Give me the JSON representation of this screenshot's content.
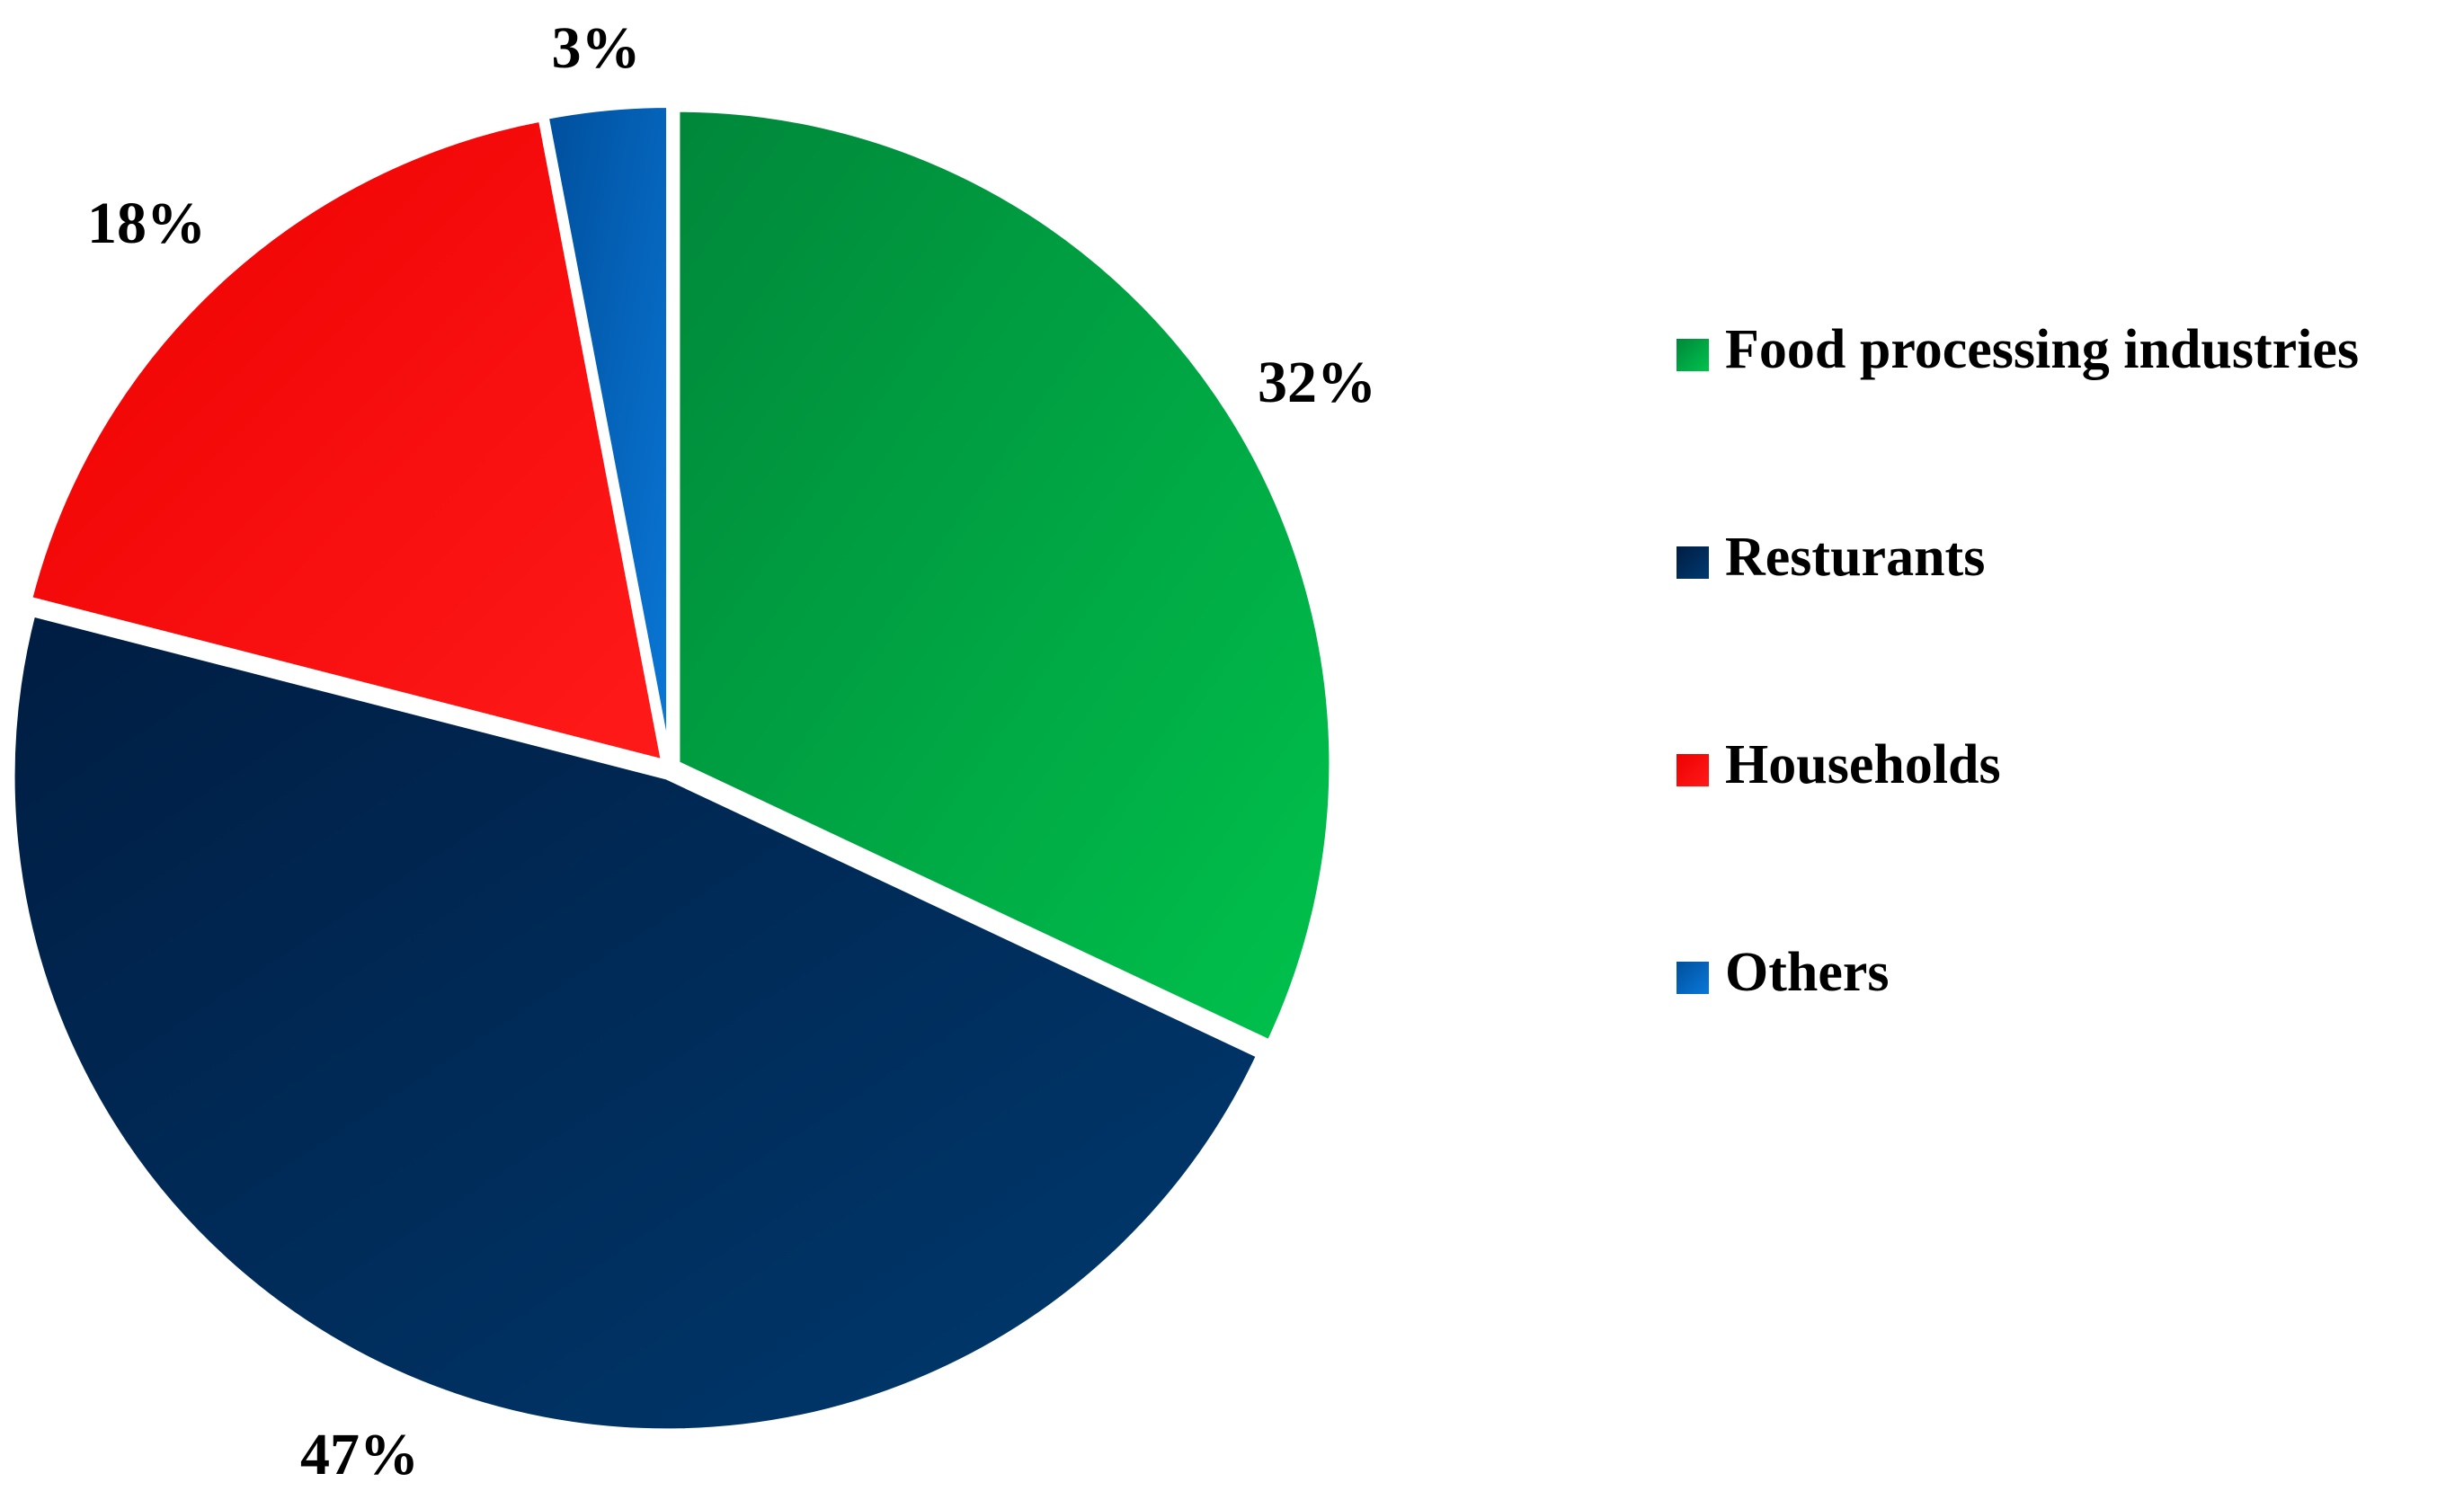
{
  "chart_data": {
    "type": "pie",
    "title": "",
    "legend_position": "right",
    "slices": [
      {
        "name": "Food processing industries",
        "value": 32,
        "label": "32%",
        "color": "#00a844",
        "color_dark": "#00873a",
        "color_light": "#00c24c"
      },
      {
        "name": "Resturants",
        "value": 47,
        "label": "47%",
        "color": "#002d5c",
        "color_dark": "#001d42",
        "color_light": "#003a70"
      },
      {
        "name": "Households",
        "value": 18,
        "label": "18%",
        "color": "#ff0000",
        "color_dark": "#ee0000",
        "color_light": "#ff1a1a"
      },
      {
        "name": "Others",
        "value": 3,
        "label": "3%",
        "color": "#0060b8",
        "color_dark": "#004f9c",
        "color_light": "#0a78d8"
      }
    ]
  }
}
